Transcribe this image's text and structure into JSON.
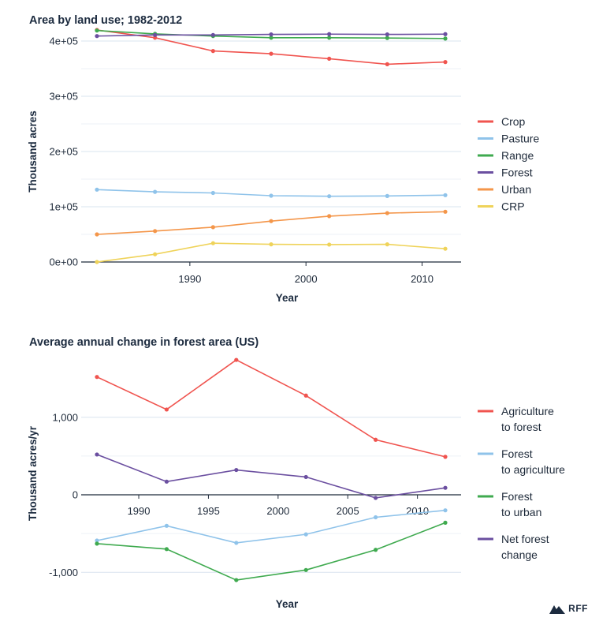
{
  "chart_data": [
    {
      "type": "line",
      "title": "Area by land use; 1982-2012",
      "xlabel": "Year",
      "ylabel": "Thousand acres",
      "xlim": [
        1982,
        2012
      ],
      "ylim": [
        0,
        400000
      ],
      "xticks": [
        1990,
        2000,
        2010
      ],
      "xtick_labels": [
        "1990",
        "2000",
        "2010"
      ],
      "yticks": [
        0,
        100000,
        200000,
        300000,
        400000
      ],
      "ytick_labels": [
        "0e+00",
        "1e+05",
        "2e+05",
        "3e+05",
        "4e+05"
      ],
      "grid": "horizontal",
      "legend_position": "right",
      "x": [
        1982,
        1987,
        1992,
        1997,
        2002,
        2007,
        2012
      ],
      "series": [
        {
          "name": "Crop",
          "color": "#f0544f",
          "values": [
            420000,
            406000,
            382000,
            377000,
            368000,
            358000,
            362000
          ]
        },
        {
          "name": "Pasture",
          "color": "#8fc3ea",
          "values": [
            131000,
            127000,
            125000,
            120000,
            119000,
            119500,
            121000
          ]
        },
        {
          "name": "Range",
          "color": "#3faa4f",
          "values": [
            419000,
            413000,
            409000,
            406000,
            406000,
            405500,
            404500
          ]
        },
        {
          "name": "Forest",
          "color": "#6b4fa0",
          "values": [
            409000,
            411000,
            411000,
            412000,
            412500,
            412000,
            412500
          ]
        },
        {
          "name": "Urban",
          "color": "#f4964a",
          "values": [
            50000,
            56000,
            63000,
            74000,
            83000,
            88500,
            91000
          ]
        },
        {
          "name": "CRP",
          "color": "#efd35a",
          "values": [
            0,
            14000,
            34000,
            32000,
            31500,
            32000,
            24000
          ]
        }
      ]
    },
    {
      "type": "line",
      "title": "Average annual change in forest area (US)",
      "xlabel": "Year",
      "ylabel": "Thousand acres/yr",
      "xlim": [
        1987,
        2012
      ],
      "ylim": [
        -1150,
        1700
      ],
      "xticks": [
        1990,
        1995,
        2000,
        2005,
        2010
      ],
      "xtick_labels": [
        "1990",
        "1995",
        "2000",
        "2005",
        "2010"
      ],
      "yticks": [
        -1000,
        0,
        1000
      ],
      "ytick_labels": [
        "-1,000",
        "0",
        "1,000"
      ],
      "grid": "horizontal",
      "legend_position": "right",
      "x": [
        1987,
        1992,
        1997,
        2002,
        2007,
        2012
      ],
      "series": [
        {
          "name": "Agriculture to forest",
          "legend_lines": [
            "Agriculture",
            "to forest"
          ],
          "color": "#f0544f",
          "values": [
            1520,
            1100,
            1740,
            1280,
            710,
            490
          ]
        },
        {
          "name": "Forest to agriculture",
          "legend_lines": [
            "Forest",
            "to agriculture"
          ],
          "color": "#8fc3ea",
          "values": [
            -590,
            -400,
            -620,
            -510,
            -290,
            -200
          ]
        },
        {
          "name": "Forest to urban",
          "legend_lines": [
            "Forest",
            "to urban"
          ],
          "color": "#3faa4f",
          "values": [
            -630,
            -700,
            -1100,
            -970,
            -710,
            -360
          ]
        },
        {
          "name": "Net forest change",
          "legend_lines": [
            "Net forest",
            "change"
          ],
          "color": "#6b4fa0",
          "values": [
            520,
            170,
            320,
            230,
            -40,
            90
          ]
        }
      ]
    }
  ],
  "logo": {
    "text": "RFF",
    "icon": "mountain-logo-icon"
  }
}
